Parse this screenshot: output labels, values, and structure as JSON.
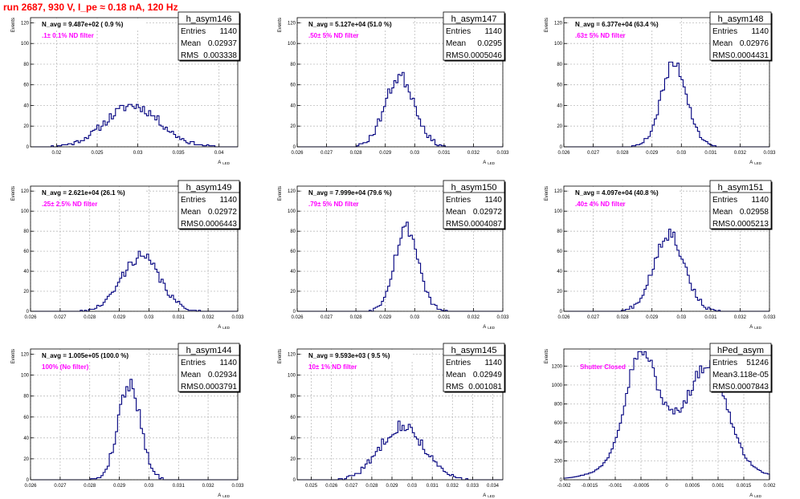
{
  "page": {
    "title": "run 2687,   930 V, I_pe ≈ 0.18 nA, 120 Hz"
  },
  "common": {
    "y_axis_label": "Events",
    "x_axis_label": "A",
    "x_axis_label_sub": "LED",
    "stats_labels": [
      "Entries",
      "Mean",
      "RMS"
    ],
    "hist_color": "#00007f",
    "annotation_color": "#ff00ff"
  },
  "chart_data": [
    {
      "type": "bar",
      "hist_name": "h_asym146",
      "header": "N_avg = 9.487e+02 ( 0.9 %)",
      "filter": ".1± 0.1% ND filter",
      "stats": {
        "entries": "1140",
        "mean": "0.02937",
        "rms": "0.003338"
      },
      "xlim": [
        0.0168,
        0.0423
      ],
      "ylim": [
        0,
        125
      ],
      "x_ticks": [
        "0.02",
        "0.025",
        "0.03",
        "0.035",
        "0.04"
      ],
      "x_tick_values": [
        0.02,
        0.025,
        0.03,
        0.035,
        0.04
      ],
      "y_ticks": [
        0,
        20,
        40,
        60,
        80,
        100,
        120
      ],
      "mean": 0.02937,
      "rms": 0.003338,
      "peak": 40,
      "shape": "gauss",
      "nbins": 100,
      "seed": 11
    },
    {
      "type": "bar",
      "hist_name": "h_asym147",
      "header": "N_avg = 5.127e+04 (51.0 %)",
      "filter": ".50± 5% ND filter",
      "stats": {
        "entries": "1140",
        "mean": "0.0295",
        "rms": "0.0005046"
      },
      "xlim": [
        0.026,
        0.033
      ],
      "ylim": [
        0,
        125
      ],
      "x_ticks": [
        "0.026",
        "0.027",
        "0.028",
        "0.029",
        "0.03",
        "0.031",
        "0.032",
        "0.033"
      ],
      "x_tick_values": [
        0.026,
        0.027,
        0.028,
        0.029,
        0.03,
        0.031,
        0.032,
        0.033
      ],
      "y_ticks": [
        0,
        20,
        40,
        60,
        80,
        100,
        120
      ],
      "mean": 0.0295,
      "rms": 0.0005046,
      "peak": 68,
      "shape": "gauss",
      "nbins": 100,
      "seed": 23
    },
    {
      "type": "bar",
      "hist_name": "h_asym148",
      "header": "N_avg = 6.377e+04 (63.4 %)",
      "filter": ".63± 5% ND filter",
      "stats": {
        "entries": "1140",
        "mean": "0.02976",
        "rms": "0.0004431"
      },
      "xlim": [
        0.026,
        0.033
      ],
      "ylim": [
        0,
        125
      ],
      "x_ticks": [
        "0.026",
        "0.027",
        "0.028",
        "0.029",
        "0.03",
        "0.031",
        "0.032",
        "0.033"
      ],
      "x_tick_values": [
        0.026,
        0.027,
        0.028,
        0.029,
        0.03,
        0.031,
        0.032,
        0.033
      ],
      "y_ticks": [
        0,
        20,
        40,
        60,
        80,
        100,
        120
      ],
      "mean": 0.02976,
      "rms": 0.0004431,
      "peak": 80,
      "shape": "gauss",
      "nbins": 100,
      "seed": 37
    },
    {
      "type": "bar",
      "hist_name": "h_asym149",
      "header": "N_avg = 2.621e+04 (26.1 %)",
      "filter": ".25± 2.5% ND filter",
      "stats": {
        "entries": "1140",
        "mean": "0.02972",
        "rms": "0.0006443"
      },
      "xlim": [
        0.026,
        0.033
      ],
      "ylim": [
        0,
        125
      ],
      "x_ticks": [
        "0.026",
        "0.027",
        "0.028",
        "0.029",
        "0.03",
        "0.031",
        "0.032",
        "0.033"
      ],
      "x_tick_values": [
        0.026,
        0.027,
        0.028,
        0.029,
        0.03,
        0.031,
        0.032,
        0.033
      ],
      "y_ticks": [
        0,
        20,
        40,
        60,
        80,
        100,
        120
      ],
      "mean": 0.02972,
      "rms": 0.0006443,
      "peak": 55,
      "shape": "gauss",
      "nbins": 100,
      "seed": 41
    },
    {
      "type": "bar",
      "hist_name": "h_asym150",
      "header": "N_avg = 7.999e+04 (79.6 %)",
      "filter": ".79± 5% ND filter",
      "stats": {
        "entries": "1140",
        "mean": "0.02972",
        "rms": "0.0004087"
      },
      "xlim": [
        0.026,
        0.033
      ],
      "ylim": [
        0,
        125
      ],
      "x_ticks": [
        "0.026",
        "0.027",
        "0.028",
        "0.029",
        "0.03",
        "0.031",
        "0.032",
        "0.033"
      ],
      "x_tick_values": [
        0.026,
        0.027,
        0.028,
        0.029,
        0.03,
        0.031,
        0.032,
        0.033
      ],
      "y_ticks": [
        0,
        20,
        40,
        60,
        80,
        100,
        120
      ],
      "mean": 0.02972,
      "rms": 0.0004087,
      "peak": 84,
      "shape": "gauss",
      "nbins": 100,
      "seed": 53
    },
    {
      "type": "bar",
      "hist_name": "h_asym151",
      "header": "N_avg = 4.097e+04 (40.8 %)",
      "filter": ".40± 4% ND filter",
      "stats": {
        "entries": "1140",
        "mean": "0.02958",
        "rms": "0.0005213"
      },
      "xlim": [
        0.026,
        0.033
      ],
      "ylim": [
        0,
        125
      ],
      "x_ticks": [
        "0.026",
        "0.027",
        "0.028",
        "0.029",
        "0.03",
        "0.031",
        "0.032",
        "0.033"
      ],
      "x_tick_values": [
        0.026,
        0.027,
        0.028,
        0.029,
        0.03,
        0.031,
        0.032,
        0.033
      ],
      "y_ticks": [
        0,
        20,
        40,
        60,
        80,
        100,
        120
      ],
      "mean": 0.02958,
      "rms": 0.0005213,
      "peak": 78,
      "shape": "gauss",
      "nbins": 100,
      "seed": 67
    },
    {
      "type": "bar",
      "hist_name": "h_asym144",
      "header": "N_avg = 1.005e+05 (100.0 %)",
      "filter": "100% (No filter)",
      "stats": {
        "entries": "1140",
        "mean": "0.02934",
        "rms": "0.0003791"
      },
      "xlim": [
        0.026,
        0.033
      ],
      "ylim": [
        0,
        125
      ],
      "x_ticks": [
        "0.026",
        "0.027",
        "0.028",
        "0.029",
        "0.03",
        "0.031",
        "0.032",
        "0.033"
      ],
      "x_tick_values": [
        0.026,
        0.027,
        0.028,
        0.029,
        0.03,
        0.031,
        0.032,
        0.033
      ],
      "y_ticks": [
        0,
        20,
        40,
        60,
        80,
        100,
        120
      ],
      "mean": 0.02934,
      "rms": 0.0003791,
      "peak": 92,
      "shape": "gauss",
      "nbins": 100,
      "seed": 79
    },
    {
      "type": "bar",
      "hist_name": "h_asym145",
      "header": "N_avg = 9.593e+03 ( 9.5 %)",
      "filter": "10± 1% ND filter",
      "stats": {
        "entries": "1140",
        "mean": "0.02949",
        "rms": "0.001081"
      },
      "xlim": [
        0.0243,
        0.0345
      ],
      "ylim": [
        0,
        125
      ],
      "x_ticks": [
        "0.025",
        "0.026",
        "0.027",
        "0.028",
        "0.029",
        "0.03",
        "0.031",
        "0.032",
        "0.033",
        "0.034"
      ],
      "x_tick_values": [
        0.025,
        0.026,
        0.027,
        0.028,
        0.029,
        0.03,
        0.031,
        0.032,
        0.033,
        0.034
      ],
      "y_ticks": [
        0,
        20,
        40,
        60,
        80,
        100,
        120
      ],
      "mean": 0.02949,
      "rms": 0.001081,
      "peak": 52,
      "shape": "gauss",
      "nbins": 100,
      "seed": 83
    },
    {
      "type": "bar",
      "hist_name": "hPed_asym",
      "header": "",
      "filter": "Shutter Closed",
      "stats": {
        "entries": "51246",
        "mean": "-3.118e-05",
        "rms": "0.0007843"
      },
      "xlim": [
        -0.002,
        0.002
      ],
      "ylim": [
        0,
        1380
      ],
      "x_ticks": [
        "-0.002",
        "-0.0015",
        "-0.001",
        "-0.0005",
        "0",
        "0.0005",
        "0.001",
        "0.0015",
        "0.002"
      ],
      "x_tick_values": [
        -0.002,
        -0.0015,
        -0.001,
        -0.0005,
        0,
        0.0005,
        0.001,
        0.0015,
        0.002
      ],
      "y_ticks": [
        0,
        200,
        400,
        600,
        800,
        1000,
        1200
      ],
      "mean": -3.118e-05,
      "rms": 0.0007843,
      "peak": 1300,
      "shape": "bimodal",
      "nbins": 100,
      "seed": 97
    }
  ]
}
